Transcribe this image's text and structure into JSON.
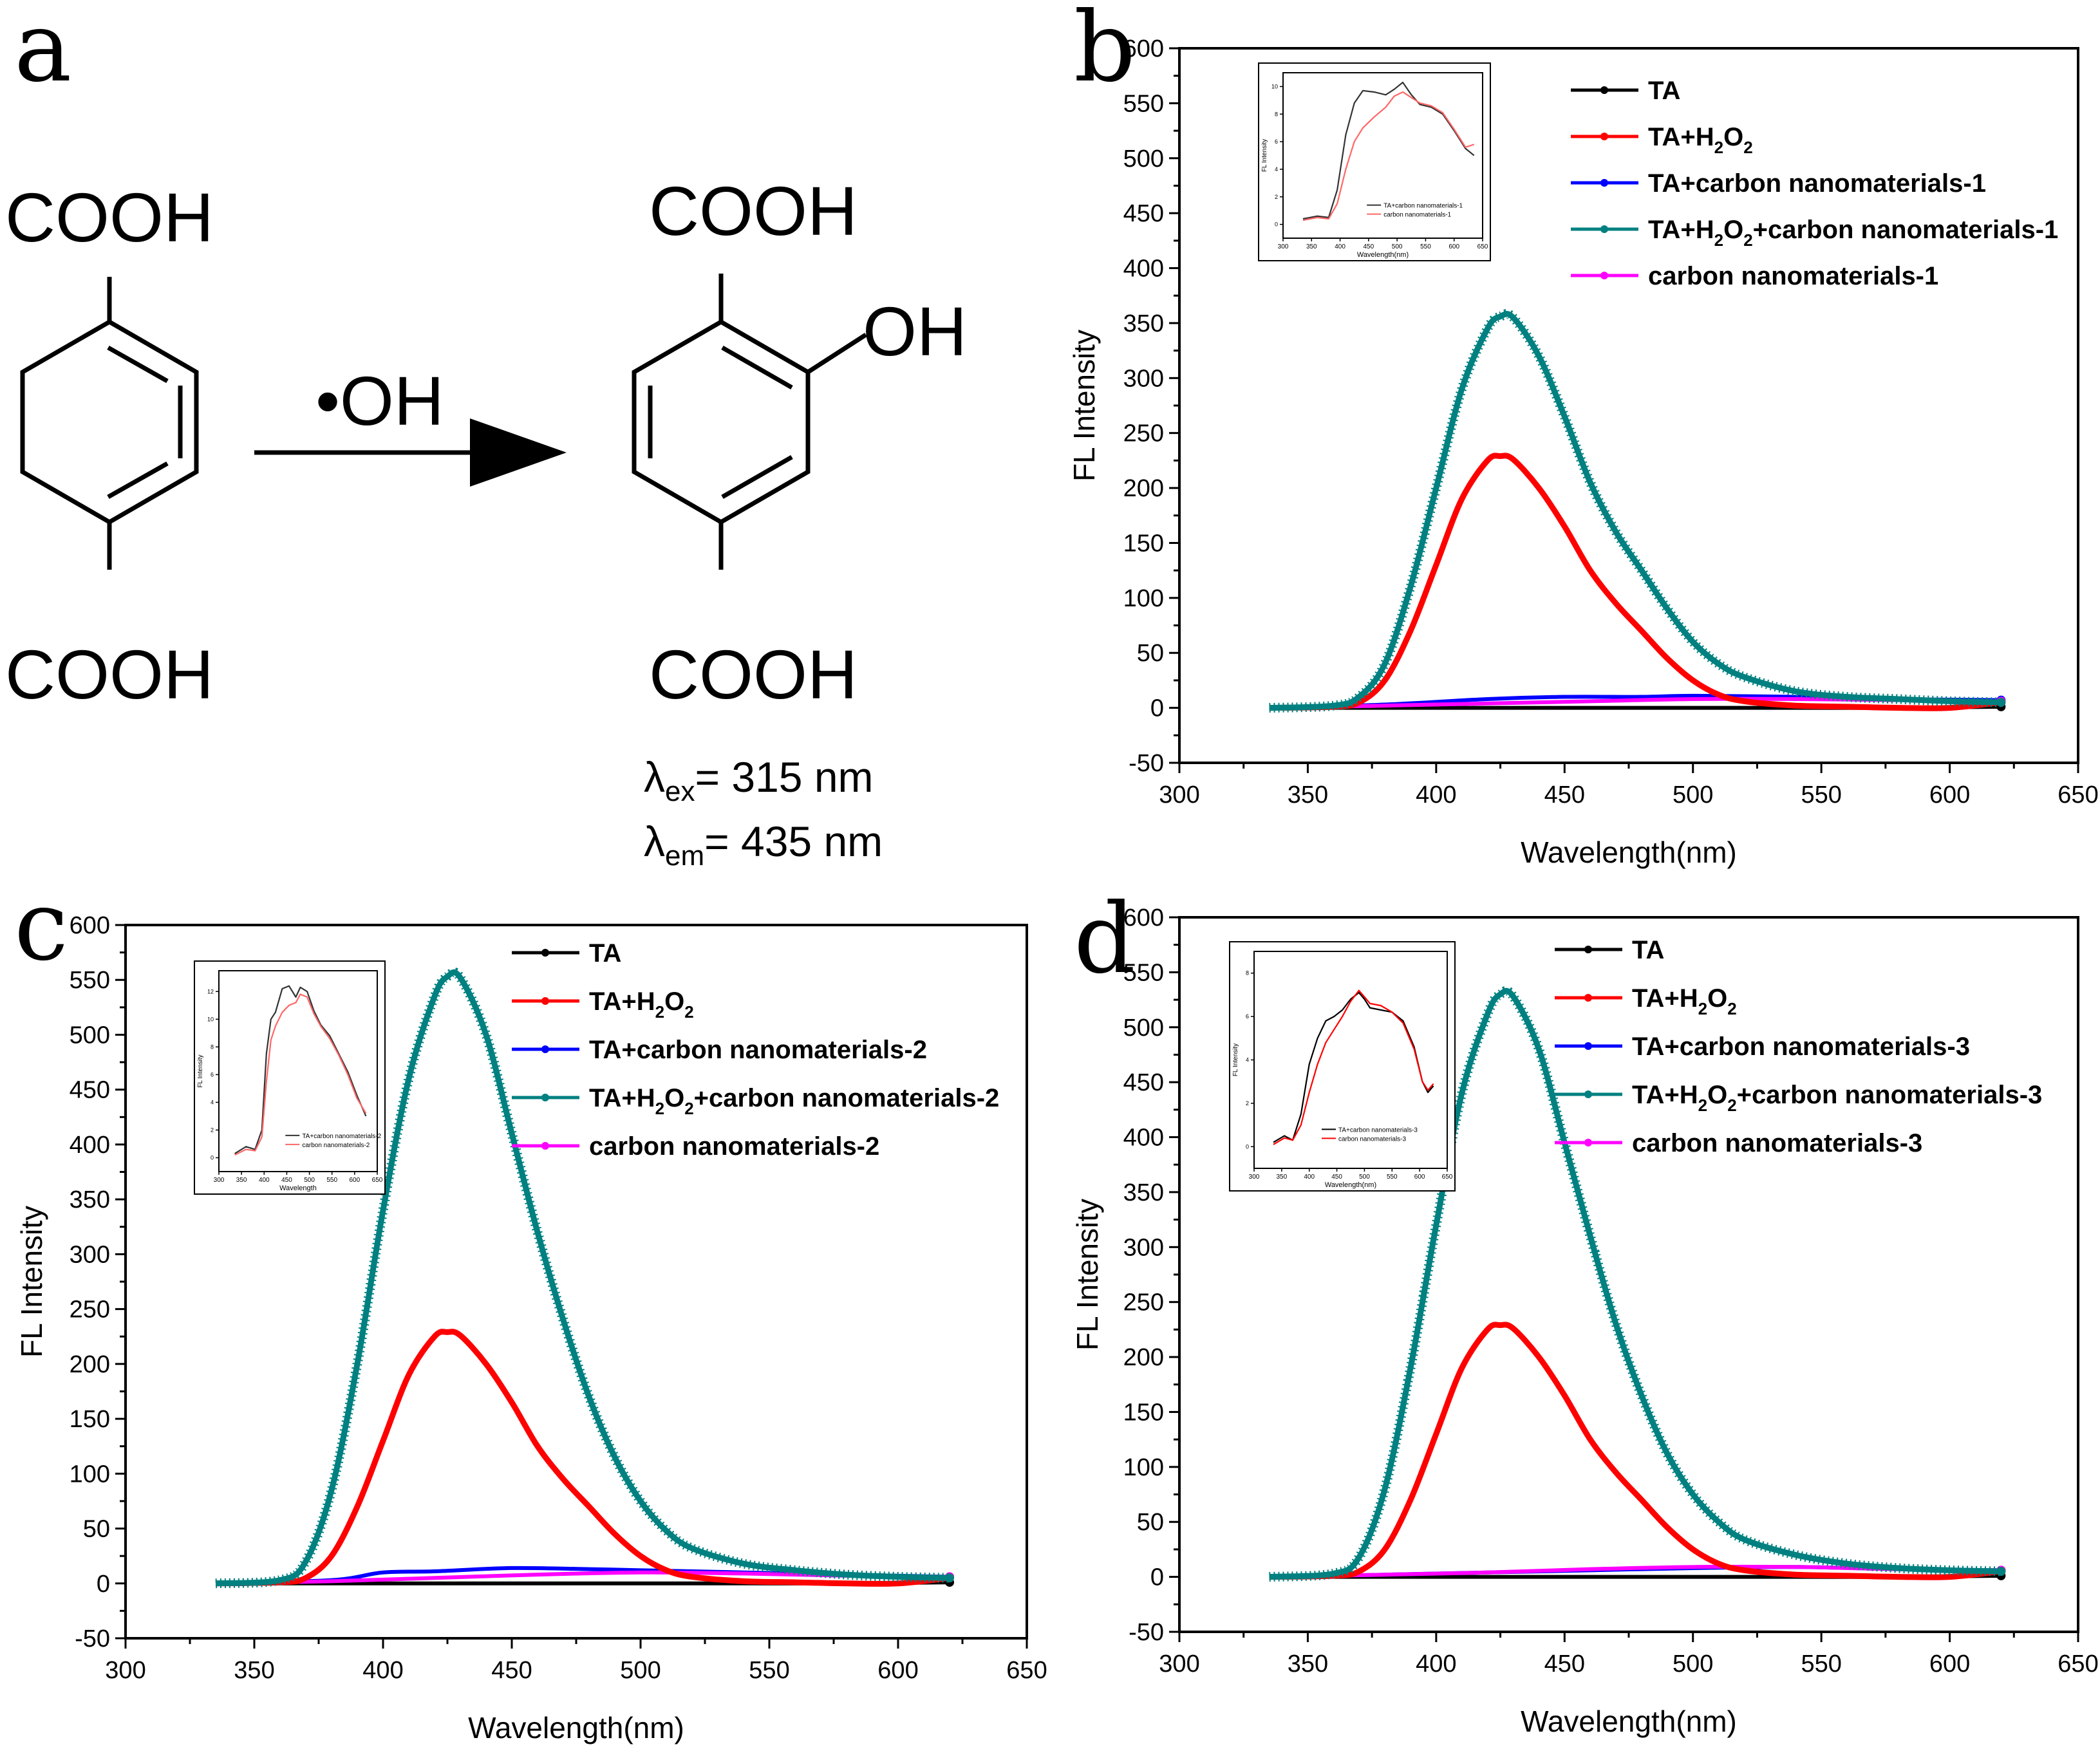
{
  "figure": {
    "panel_a": {
      "letter": "a",
      "reactant_top": "COOH",
      "reactant_bottom": "COOH",
      "reagent": "•OH",
      "product_top": "COOH",
      "product_side": "OH",
      "product_bottom": "COOH",
      "lambda_ex": {
        "symbol": "λ",
        "sub": "ex",
        "text": "= 315 nm"
      },
      "lambda_em": {
        "symbol": "λ",
        "sub": "em",
        "text": "= 435 nm"
      }
    }
  },
  "chart_data": [
    {
      "panel": "b",
      "type": "line",
      "xlabel": "Wavelength(nm)",
      "ylabel": "FL Intensity",
      "xlim": [
        300,
        650
      ],
      "ylim": [
        -50,
        600
      ],
      "x_ticks": [
        300,
        350,
        400,
        450,
        500,
        550,
        600,
        650
      ],
      "y_ticks": [
        -50,
        0,
        50,
        100,
        150,
        200,
        250,
        300,
        350,
        400,
        450,
        500,
        550,
        600
      ],
      "series": [
        {
          "name": "TA",
          "color": "#000000",
          "x": [
            335,
            380,
            420,
            460,
            500,
            540,
            580,
            620
          ],
          "y": [
            0,
            0,
            0,
            0,
            0,
            0,
            0,
            1
          ]
        },
        {
          "name": "TA+H2O2",
          "color": "#ff0000",
          "x": [
            335,
            360,
            370,
            380,
            390,
            400,
            410,
            420,
            425,
            430,
            440,
            450,
            460,
            470,
            480,
            490,
            500,
            510,
            520,
            540,
            560,
            580,
            600,
            620
          ],
          "y": [
            0,
            1,
            5,
            25,
            70,
            130,
            190,
            225,
            229,
            226,
            200,
            165,
            125,
            95,
            70,
            45,
            25,
            12,
            6,
            2,
            1,
            0,
            0,
            5
          ]
        },
        {
          "name": "TA+carbon nanomaterials-1",
          "color": "#0000ff",
          "x": [
            335,
            380,
            420,
            450,
            480,
            500,
            540,
            580,
            620
          ],
          "y": [
            0,
            3,
            8,
            10,
            10,
            11,
            10,
            8,
            7
          ]
        },
        {
          "name": "TA+H2O2+carbon nanomaterials-1",
          "color": "#008080",
          "x": [
            335,
            360,
            370,
            380,
            390,
            400,
            410,
            420,
            425,
            430,
            440,
            450,
            460,
            470,
            480,
            490,
            500,
            510,
            520,
            540,
            560,
            580,
            600,
            620
          ],
          "y": [
            0,
            2,
            10,
            40,
            110,
            200,
            290,
            345,
            356,
            355,
            320,
            265,
            205,
            160,
            125,
            90,
            60,
            40,
            28,
            15,
            10,
            8,
            6,
            5
          ]
        },
        {
          "name": "carbon nanomaterials-1",
          "color": "#ff00ff",
          "x": [
            335,
            380,
            420,
            460,
            500,
            540,
            580,
            620
          ],
          "y": [
            0,
            2,
            4,
            6,
            8,
            8,
            7,
            6
          ]
        }
      ],
      "inset": {
        "xlabel": "Wavelength(nm)",
        "ylabel": "FL Intensity",
        "x_ticks": [
          350,
          400,
          450,
          500,
          550,
          600,
          650
        ],
        "x_ticks_shown": [
          "300",
          "350",
          "400",
          "450",
          "500",
          "550",
          "600",
          "650"
        ],
        "xlim": [
          300,
          650
        ],
        "y_ticks": [
          0,
          2,
          4,
          6,
          8,
          10
        ],
        "ylim": [
          -1,
          11
        ],
        "legend": [
          "TA+carbon nanomaterials-1",
          "carbon nanomaterials-1"
        ],
        "series": [
          {
            "color": "#333333",
            "x": [
              335,
              360,
              380,
              395,
              410,
              425,
              440,
              460,
              480,
              495,
              510,
              525,
              540,
              560,
              580,
              600,
              620,
              635
            ],
            "y": [
              0.4,
              0.6,
              0.5,
              2.5,
              6.5,
              8.8,
              9.7,
              9.6,
              9.4,
              9.8,
              10.3,
              9.4,
              8.7,
              8.5,
              8.0,
              6.8,
              5.5,
              5.0
            ]
          },
          {
            "color": "#ff6666",
            "x": [
              335,
              360,
              380,
              395,
              410,
              425,
              440,
              460,
              480,
              495,
              510,
              525,
              540,
              560,
              580,
              600,
              620,
              635
            ],
            "y": [
              0.3,
              0.5,
              0.4,
              1.5,
              4.0,
              6.0,
              7.0,
              7.8,
              8.5,
              9.3,
              9.6,
              9.2,
              8.8,
              8.6,
              8.1,
              6.9,
              5.6,
              5.8
            ]
          }
        ]
      }
    },
    {
      "panel": "c",
      "type": "line",
      "xlabel": "Wavelength(nm)",
      "ylabel": "FL Intensity",
      "xlim": [
        300,
        650
      ],
      "ylim": [
        -50,
        600
      ],
      "x_ticks": [
        300,
        350,
        400,
        450,
        500,
        550,
        600,
        650
      ],
      "y_ticks": [
        -50,
        0,
        50,
        100,
        150,
        200,
        250,
        300,
        350,
        400,
        450,
        500,
        550,
        600
      ],
      "series": [
        {
          "name": "TA",
          "color": "#000000",
          "x": [
            335,
            380,
            420,
            460,
            500,
            540,
            580,
            620
          ],
          "y": [
            0,
            0,
            0,
            0,
            0,
            0,
            0,
            1
          ]
        },
        {
          "name": "TA+H2O2",
          "color": "#ff0000",
          "x": [
            335,
            360,
            370,
            380,
            390,
            400,
            410,
            420,
            425,
            430,
            440,
            450,
            460,
            470,
            480,
            490,
            500,
            510,
            520,
            540,
            560,
            580,
            600,
            620
          ],
          "y": [
            0,
            1,
            5,
            25,
            70,
            130,
            190,
            225,
            229,
            226,
            200,
            165,
            125,
            95,
            70,
            45,
            25,
            12,
            6,
            2,
            1,
            0,
            0,
            5
          ]
        },
        {
          "name": "TA+carbon nanomaterials-2",
          "color": "#0000ff",
          "x": [
            335,
            380,
            400,
            420,
            450,
            480,
            500,
            540,
            580,
            620
          ],
          "y": [
            0,
            3,
            10,
            11,
            14,
            13,
            12,
            10,
            8,
            6
          ]
        },
        {
          "name": "TA+H2O2+carbon nanomaterials-2",
          "color": "#008080",
          "x": [
            335,
            360,
            370,
            380,
            390,
            400,
            410,
            420,
            425,
            430,
            440,
            450,
            460,
            470,
            480,
            490,
            500,
            510,
            520,
            540,
            560,
            580,
            600,
            620
          ],
          "y": [
            0,
            3,
            20,
            85,
            200,
            340,
            460,
            535,
            553,
            552,
            500,
            410,
            320,
            240,
            170,
            115,
            75,
            48,
            32,
            18,
            12,
            8,
            6,
            5
          ]
        },
        {
          "name": "carbon nanomaterials-2",
          "color": "#ff00ff",
          "x": [
            335,
            380,
            420,
            460,
            500,
            540,
            580,
            620
          ],
          "y": [
            0,
            2,
            5,
            8,
            10,
            9,
            7,
            6
          ]
        }
      ],
      "inset": {
        "xlabel": "Wavelength",
        "ylabel": "FL Intensity",
        "x_ticks_shown": [
          "300",
          "350",
          "400",
          "450",
          "500",
          "550",
          "600",
          "650"
        ],
        "xlim": [
          300,
          650
        ],
        "y_ticks": [
          0,
          2,
          4,
          6,
          8,
          10,
          12
        ],
        "ylim": [
          -1,
          13.5
        ],
        "legend": [
          "TA+carbon nanomaterials-2",
          "carbon nanomaterials-2"
        ],
        "series": [
          {
            "color": "#333333",
            "x": [
              335,
              360,
              380,
              395,
              405,
              415,
              425,
              440,
              455,
              470,
              480,
              495,
              510,
              525,
              545,
              565,
              585,
              605,
              625
            ],
            "y": [
              0.3,
              0.8,
              0.6,
              2.0,
              7.5,
              10.0,
              10.5,
              12.2,
              12.4,
              11.6,
              12.3,
              12.0,
              10.6,
              9.6,
              8.8,
              7.5,
              6.2,
              4.5,
              3.0
            ]
          },
          {
            "color": "#ff6666",
            "x": [
              335,
              360,
              380,
              395,
              405,
              415,
              425,
              440,
              455,
              470,
              480,
              495,
              510,
              525,
              545,
              565,
              585,
              605,
              625
            ],
            "y": [
              0.2,
              0.6,
              0.5,
              1.5,
              5.5,
              8.5,
              9.5,
              10.5,
              11.0,
              11.2,
              11.8,
              11.6,
              10.4,
              9.5,
              8.6,
              7.4,
              6.0,
              4.3,
              3.2
            ]
          }
        ]
      }
    },
    {
      "panel": "d",
      "type": "line",
      "xlabel": "Wavelength(nm)",
      "ylabel": "FL Intensity",
      "xlim": [
        300,
        650
      ],
      "ylim": [
        -50,
        600
      ],
      "x_ticks": [
        300,
        350,
        400,
        450,
        500,
        550,
        600,
        650
      ],
      "y_ticks": [
        -50,
        0,
        50,
        100,
        150,
        200,
        250,
        300,
        350,
        400,
        450,
        500,
        550,
        600
      ],
      "series": [
        {
          "name": "TA",
          "color": "#000000",
          "x": [
            335,
            380,
            420,
            460,
            500,
            540,
            580,
            620
          ],
          "y": [
            0,
            0,
            0,
            0,
            0,
            0,
            0,
            1
          ]
        },
        {
          "name": "TA+H2O2",
          "color": "#ff0000",
          "x": [
            335,
            360,
            370,
            380,
            390,
            400,
            410,
            420,
            425,
            430,
            440,
            450,
            460,
            470,
            480,
            490,
            500,
            510,
            520,
            540,
            560,
            580,
            600,
            620
          ],
          "y": [
            0,
            1,
            5,
            25,
            70,
            130,
            190,
            225,
            229,
            226,
            200,
            165,
            125,
            95,
            70,
            45,
            25,
            12,
            6,
            2,
            1,
            0,
            0,
            5
          ]
        },
        {
          "name": "TA+carbon nanomaterials-3",
          "color": "#0000ff",
          "x": [
            335,
            380,
            420,
            460,
            500,
            540,
            580,
            620
          ],
          "y": [
            0,
            2,
            4,
            6,
            8,
            9,
            7,
            6
          ]
        },
        {
          "name": "TA+H2O2+carbon nanomaterials-3",
          "color": "#008080",
          "x": [
            335,
            360,
            370,
            380,
            390,
            400,
            410,
            420,
            425,
            430,
            440,
            450,
            460,
            470,
            480,
            490,
            500,
            510,
            520,
            540,
            560,
            580,
            600,
            620
          ],
          "y": [
            0,
            3,
            18,
            80,
            190,
            320,
            440,
            512,
            530,
            528,
            480,
            395,
            310,
            230,
            165,
            112,
            75,
            50,
            34,
            20,
            12,
            8,
            6,
            5
          ]
        },
        {
          "name": "carbon nanomaterials-3",
          "color": "#ff00ff",
          "x": [
            335,
            380,
            420,
            460,
            500,
            540,
            580,
            620
          ],
          "y": [
            0,
            2,
            4,
            7,
            9,
            9,
            7,
            6
          ]
        }
      ],
      "inset": {
        "xlabel": "Wavelength(nm)",
        "ylabel": "FL Intensity",
        "x_ticks_shown": [
          "300",
          "350",
          "400",
          "450",
          "500",
          "550",
          "600",
          "650"
        ],
        "xlim": [
          300,
          650
        ],
        "y_ticks": [
          0,
          2,
          4,
          6,
          8
        ],
        "ylim": [
          -1,
          9
        ],
        "legend": [
          "TA+carbon nanomaterials-3",
          "carbon nanomaterials-3"
        ],
        "series": [
          {
            "color": "#000000",
            "x": [
              335,
              355,
              370,
              385,
              400,
              415,
              430,
              445,
              460,
              475,
              490,
              500,
              510,
              530,
              550,
              570,
              590,
              605,
              615,
              625
            ],
            "y": [
              0.2,
              0.5,
              0.3,
              1.5,
              3.8,
              5.0,
              5.8,
              6.0,
              6.3,
              6.8,
              7.1,
              6.8,
              6.4,
              6.3,
              6.2,
              5.8,
              4.6,
              3.0,
              2.5,
              2.8
            ]
          },
          {
            "color": "#ff0000",
            "x": [
              335,
              355,
              370,
              385,
              400,
              415,
              430,
              445,
              460,
              475,
              490,
              500,
              510,
              530,
              550,
              570,
              590,
              605,
              615,
              625
            ],
            "y": [
              0.1,
              0.4,
              0.3,
              1.0,
              2.5,
              3.8,
              4.8,
              5.4,
              6.0,
              6.7,
              7.2,
              6.9,
              6.6,
              6.5,
              6.2,
              5.7,
              4.5,
              3.0,
              2.6,
              2.9
            ]
          }
        ]
      }
    }
  ]
}
